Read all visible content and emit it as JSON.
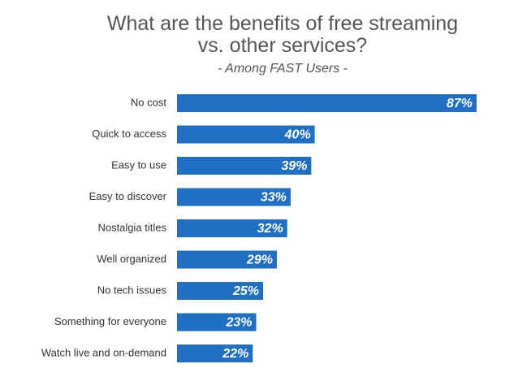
{
  "chart_data": {
    "type": "bar",
    "orientation": "horizontal",
    "title": "What are the benefits of free streaming\nvs. other services?",
    "subtitle": "- Among FAST Users -",
    "categories": [
      "No cost",
      "Quick to access",
      "Easy to use",
      "Easy to discover",
      "Nostalgia titles",
      "Well organized",
      "No tech issues",
      "Something for everyone",
      "Watch live and on-demand"
    ],
    "values": [
      87,
      40,
      39,
      33,
      32,
      29,
      25,
      23,
      22
    ],
    "value_labels": [
      "87%",
      "40%",
      "39%",
      "33%",
      "32%",
      "29%",
      "25%",
      "23%",
      "22%"
    ],
    "color": "#1f6fc5"
  }
}
